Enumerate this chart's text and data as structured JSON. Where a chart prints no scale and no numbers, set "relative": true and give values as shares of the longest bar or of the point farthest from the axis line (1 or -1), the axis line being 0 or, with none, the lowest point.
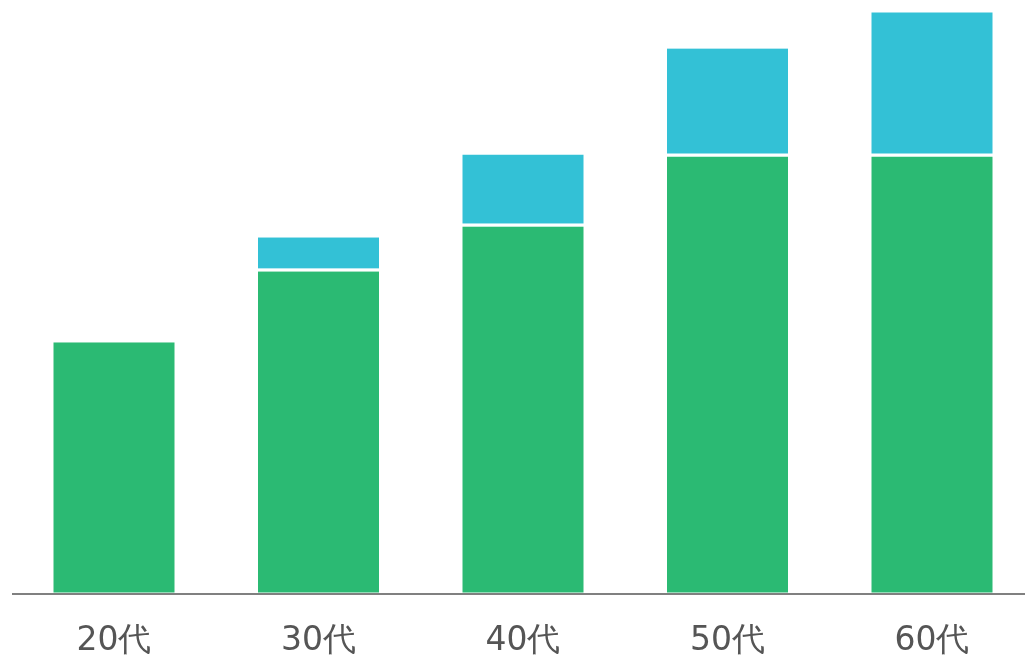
{
  "chart_data": {
    "type": "bar",
    "stacked": true,
    "relative": true,
    "categories": [
      "20代",
      "30代",
      "40代",
      "50代",
      "60代"
    ],
    "series": [
      {
        "color": "#2bba73",
        "values": [
          0.434,
          0.556,
          0.633,
          0.753,
          0.753
        ]
      },
      {
        "color": "#33c1d6",
        "values": [
          0,
          0.058,
          0.123,
          0.185,
          0.247
        ]
      }
    ]
  }
}
